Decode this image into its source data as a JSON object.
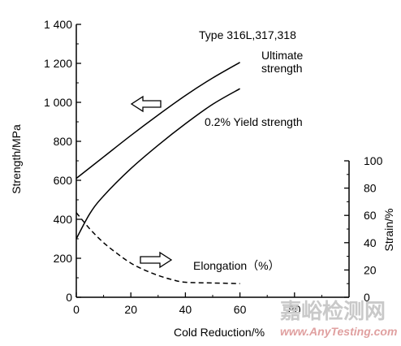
{
  "chart_data": {
    "type": "line",
    "annotation_type": "Type 316L,317,318",
    "xlabel": "Cold Reduction/%",
    "ylabel_left": "Strength/MPa",
    "ylabel_right": "Strain/%",
    "xlim": [
      0,
      100
    ],
    "ylim_left": [
      0,
      1400
    ],
    "ylim_right": [
      0,
      100
    ],
    "x_ticks": [
      0,
      20,
      40,
      60,
      80
    ],
    "y_left_ticks": [
      0,
      200,
      400,
      600,
      800,
      1000,
      1200,
      1400
    ],
    "y_left_tick_labels": [
      "0",
      "200",
      "400",
      "600",
      "800",
      "1 000",
      "1 200",
      "1 400"
    ],
    "y_right_ticks": [
      0,
      20,
      40,
      60,
      80,
      100
    ],
    "grid": false,
    "series": [
      {
        "name": "Ultimate strength",
        "label_lines": [
          "Ultimate",
          "strength"
        ],
        "axis": "left",
        "style": "solid",
        "x": [
          0,
          10,
          20,
          30,
          40,
          50,
          60
        ],
        "y": [
          610,
          720,
          830,
          935,
          1035,
          1125,
          1205
        ]
      },
      {
        "name": "0.2% Yield strength",
        "label_lines": [
          "0.2% Yield strength"
        ],
        "axis": "left",
        "style": "solid",
        "x": [
          0,
          5,
          10,
          20,
          30,
          40,
          50,
          60
        ],
        "y": [
          300,
          430,
          520,
          660,
          780,
          890,
          990,
          1070
        ]
      },
      {
        "name": "Elongation（%）",
        "label_lines": [
          "Elongation（%）"
        ],
        "axis": "right",
        "style": "dashed",
        "x": [
          0,
          5,
          10,
          15,
          20,
          25,
          30,
          35,
          40,
          50,
          60
        ],
        "y": [
          62,
          50,
          40,
          32,
          25,
          20,
          16,
          13,
          11,
          10.5,
          10
        ]
      }
    ]
  },
  "watermark": {
    "main": "嘉峪检测网",
    "sub": "www.AnyTesting.com"
  }
}
